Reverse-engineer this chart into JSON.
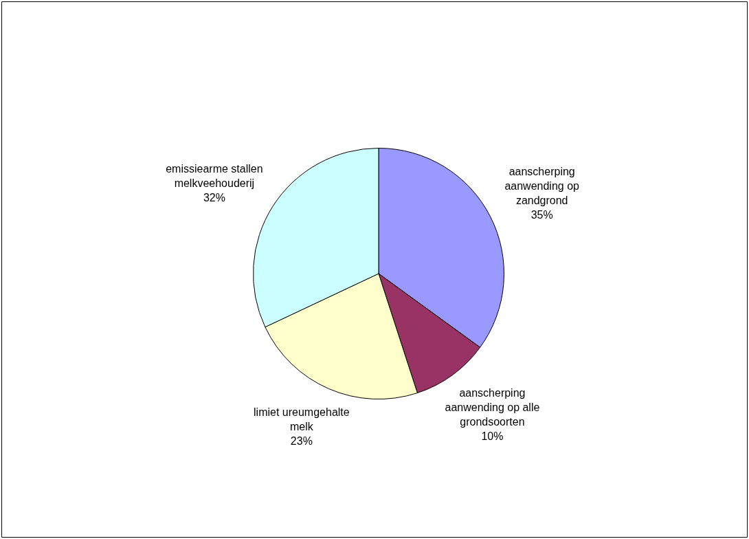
{
  "chart_data": {
    "type": "pie",
    "categories": [
      "aanscherping aanwending op zandgrond",
      "aanscherping aanwending op alle grondsoorten",
      "limiet ureumgehalte melk",
      "emissiearme stallen melkveehouderij"
    ],
    "values": [
      35,
      10,
      23,
      32
    ],
    "colors": [
      "#9999ff",
      "#993366",
      "#ffffcc",
      "#ccffff"
    ],
    "value_labels": [
      "35%",
      "10%",
      "23%",
      "32%"
    ],
    "legend": false
  }
}
